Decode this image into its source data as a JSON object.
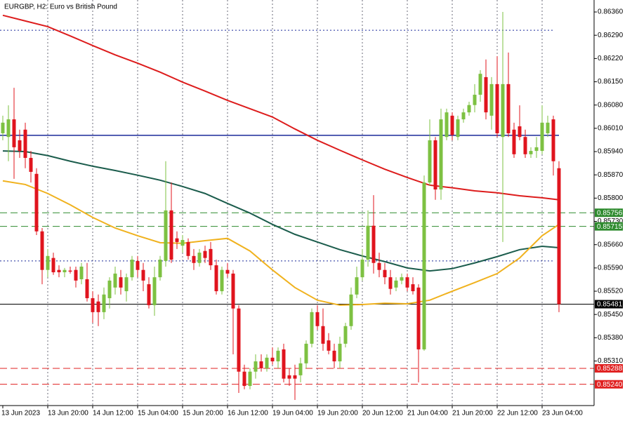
{
  "chart_data": {
    "type": "candlestick",
    "title": "EURGBP, H2:  Euro vs British Pound",
    "categories": [
      "13 Jun 2023",
      null,
      null,
      null,
      null,
      null,
      null,
      null,
      "13 Jun 20:00",
      null,
      null,
      null,
      null,
      null,
      null,
      null,
      "14 Jun 12:00",
      null,
      null,
      null,
      null,
      null,
      null,
      null,
      "15 Jun 04:00",
      null,
      null,
      null,
      null,
      null,
      null,
      null,
      "15 Jun 20:00",
      null,
      null,
      null,
      null,
      null,
      null,
      null,
      "16 Jun 12:00",
      null,
      null,
      null,
      null,
      null,
      null,
      null,
      "19 Jun 04:00",
      null,
      null,
      null,
      null,
      null,
      null,
      null,
      "19 Jun 20:00",
      null,
      null,
      null,
      null,
      null,
      null,
      null,
      "20 Jun 12:00",
      null,
      null,
      null,
      null,
      null,
      null,
      null,
      "21 Jun 04:00",
      null,
      null,
      null,
      null,
      null,
      null,
      null,
      "21 Jun 20:00",
      null,
      null,
      null,
      null,
      null,
      null,
      null,
      "22 Jun 12:00",
      null,
      null,
      null,
      null,
      null,
      null,
      null,
      "23 Jun 04:00",
      null,
      null,
      null
    ],
    "ohlc": [
      [
        0.85995,
        0.86048,
        0.85974,
        0.86027
      ],
      [
        0.85984,
        0.86079,
        0.85911,
        0.86037
      ],
      [
        0.86037,
        0.86132,
        0.85858,
        0.85953
      ],
      [
        0.85974,
        0.86006,
        0.85921,
        0.85942
      ],
      [
        0.86006,
        0.86027,
        0.8589,
        0.85921
      ],
      [
        0.85921,
        0.85942,
        0.85847,
        0.85879
      ],
      [
        0.85873,
        0.8589,
        0.85689,
        0.857
      ],
      [
        0.857,
        0.8571,
        0.85541,
        0.85584
      ],
      [
        0.85584,
        0.85647,
        0.85562,
        0.85626
      ],
      [
        0.8562,
        0.85636,
        0.85569,
        0.85577
      ],
      [
        0.85584,
        0.85598,
        0.85562,
        0.85577
      ],
      [
        0.85577,
        0.8559,
        0.85562,
        0.85584
      ],
      [
        0.85582,
        0.85594,
        0.85573,
        0.85579
      ],
      [
        0.85584,
        0.85594,
        0.85531,
        0.85552
      ],
      [
        0.85556,
        0.85605,
        0.85541,
        0.85594
      ],
      [
        0.85556,
        0.85605,
        0.85489,
        0.85499
      ],
      [
        0.85499,
        0.8552,
        0.85425,
        0.85457
      ],
      [
        0.85489,
        0.8551,
        0.85415,
        0.85457
      ],
      [
        0.85457,
        0.85531,
        0.85436,
        0.8551
      ],
      [
        0.85499,
        0.85562,
        0.85468,
        0.85552
      ],
      [
        0.85531,
        0.85594,
        0.8551,
        0.85573
      ],
      [
        0.85562,
        0.85584,
        0.8551,
        0.85531
      ],
      [
        0.8552,
        0.85573,
        0.85489,
        0.85562
      ],
      [
        0.85562,
        0.85626,
        0.85552,
        0.85615
      ],
      [
        0.85611,
        0.85626,
        0.85562,
        0.85584
      ],
      [
        0.85584,
        0.85605,
        0.8552,
        0.85552
      ],
      [
        0.85541,
        0.85562,
        0.85468,
        0.85478
      ],
      [
        0.85478,
        0.85594,
        0.85446,
        0.85562
      ],
      [
        0.85562,
        0.85626,
        0.85552,
        0.85615
      ],
      [
        0.85611,
        0.85911,
        0.85594,
        0.85763
      ],
      [
        0.85763,
        0.85847,
        0.85605,
        0.85615
      ],
      [
        0.85679,
        0.857,
        0.85647,
        0.85668
      ],
      [
        0.85657,
        0.85689,
        0.85636,
        0.85674
      ],
      [
        0.85668,
        0.85679,
        0.85615,
        0.85626
      ],
      [
        0.85626,
        0.85647,
        0.85584,
        0.85605
      ],
      [
        0.85605,
        0.85647,
        0.85594,
        0.85636
      ],
      [
        0.85641,
        0.85657,
        0.85605,
        0.8562
      ],
      [
        0.85647,
        0.85668,
        0.85584,
        0.85598
      ],
      [
        0.85598,
        0.85615,
        0.8551,
        0.8552
      ],
      [
        0.8552,
        0.85594,
        0.8551,
        0.85584
      ],
      [
        0.85584,
        0.85605,
        0.85562,
        0.85573
      ],
      [
        0.85573,
        0.85584,
        0.8533,
        0.85468
      ],
      [
        0.85468,
        0.85478,
        0.85214,
        0.85278
      ],
      [
        0.85278,
        0.85299,
        0.85225,
        0.85235
      ],
      [
        0.85235,
        0.85288,
        0.85225,
        0.85278
      ],
      [
        0.85278,
        0.8533,
        0.85257,
        0.85309
      ],
      [
        0.85309,
        0.8533,
        0.85278,
        0.85288
      ],
      [
        0.85288,
        0.8533,
        0.85278,
        0.8532
      ],
      [
        0.8532,
        0.85351,
        0.85299,
        0.85309
      ],
      [
        0.85309,
        0.85351,
        0.85288,
        0.85341
      ],
      [
        0.85345,
        0.85362,
        0.85246,
        0.85257
      ],
      [
        0.85267,
        0.85288,
        0.85235,
        0.85257
      ],
      [
        0.85267,
        0.85299,
        0.85193,
        0.85257
      ],
      [
        0.85267,
        0.8532,
        0.85246,
        0.85303
      ],
      [
        0.85303,
        0.85372,
        0.85288,
        0.85362
      ],
      [
        0.85362,
        0.85468,
        0.85351,
        0.85457
      ],
      [
        0.85457,
        0.85478,
        0.85404,
        0.85415
      ],
      [
        0.85415,
        0.85468,
        0.85341,
        0.85362
      ],
      [
        0.85372,
        0.85394,
        0.8533,
        0.85341
      ],
      [
        0.85341,
        0.85362,
        0.85288,
        0.85309
      ],
      [
        0.85309,
        0.85383,
        0.85288,
        0.85362
      ],
      [
        0.85362,
        0.85425,
        0.85351,
        0.85415
      ],
      [
        0.85415,
        0.85531,
        0.85404,
        0.8551
      ],
      [
        0.8551,
        0.85594,
        0.85499,
        0.85562
      ],
      [
        0.85562,
        0.85647,
        0.85552,
        0.85615
      ],
      [
        0.85615,
        0.85763,
        0.85594,
        0.85717
      ],
      [
        0.85717,
        0.85809,
        0.85573,
        0.85605
      ],
      [
        0.85605,
        0.85636,
        0.85562,
        0.85584
      ],
      [
        0.85584,
        0.85605,
        0.85541,
        0.85562
      ],
      [
        0.85562,
        0.85584,
        0.8551,
        0.85527
      ],
      [
        0.85531,
        0.85562,
        0.8552,
        0.85552
      ],
      [
        0.85552,
        0.85573,
        0.85541,
        0.85562
      ],
      [
        0.85562,
        0.85573,
        0.8552,
        0.85531
      ],
      [
        0.85541,
        0.85562,
        0.8551,
        0.8552
      ],
      [
        0.85531,
        0.85541,
        0.85246,
        0.85345
      ],
      [
        0.85345,
        0.85868,
        0.85341,
        0.85847
      ],
      [
        0.85847,
        0.86037,
        0.85837,
        0.85974
      ],
      [
        0.85974,
        0.85984,
        0.85795,
        0.85826
      ],
      [
        0.85826,
        0.86069,
        0.85795,
        0.86037
      ],
      [
        0.85984,
        0.86069,
        0.85974,
        0.86058
      ],
      [
        0.86048,
        0.86058,
        0.85974,
        0.8599
      ],
      [
        0.85984,
        0.86048,
        0.85974,
        0.86037
      ],
      [
        0.86037,
        0.86069,
        0.86027,
        0.86058
      ],
      [
        0.86058,
        0.8609,
        0.86048,
        0.8608
      ],
      [
        0.8608,
        0.86143,
        0.86058,
        0.86111
      ],
      [
        0.86111,
        0.86185,
        0.8609,
        0.86174
      ],
      [
        0.86164,
        0.86217,
        0.86037,
        0.86058
      ],
      [
        0.86048,
        0.86164,
        0.86006,
        0.86143
      ],
      [
        0.86143,
        0.86227,
        0.85984,
        0.85995
      ],
      [
        0.85984,
        0.8636,
        0.85668,
        0.86143
      ],
      [
        0.86143,
        0.86238,
        0.85984,
        0.85995
      ],
      [
        0.86006,
        0.86027,
        0.85921,
        0.85932
      ],
      [
        0.86016,
        0.86079,
        0.85974,
        0.85984
      ],
      [
        0.85984,
        0.86006,
        0.85921,
        0.85932
      ],
      [
        0.85932,
        0.85953,
        0.85921,
        0.85942
      ],
      [
        0.85942,
        0.85984,
        0.85921,
        0.85953
      ],
      [
        0.85942,
        0.86079,
        0.85932,
        0.86027
      ],
      [
        0.85995,
        0.86048,
        0.85984,
        0.86027
      ],
      [
        0.86037,
        0.86048,
        0.85868,
        0.85911
      ],
      [
        0.8589,
        0.85911,
        0.85457,
        0.85481
      ]
    ],
    "bull_color": "#7dc142",
    "bear_color": "#e0141e",
    "ylim": [
      0.85176,
      0.86396
    ],
    "yticks": [
      {
        "value": 0.8636,
        "label": "0.86360"
      },
      {
        "value": 0.8629,
        "label": "0.86290"
      },
      {
        "value": 0.8622,
        "label": "0.86220"
      },
      {
        "value": 0.8615,
        "label": "0.86150"
      },
      {
        "value": 0.8608,
        "label": "0.86080"
      },
      {
        "value": 0.8601,
        "label": "0.86010"
      },
      {
        "value": 0.8594,
        "label": "0.85940"
      },
      {
        "value": 0.8587,
        "label": "0.85870"
      },
      {
        "value": 0.858,
        "label": "0.85800"
      },
      {
        "value": 0.8573,
        "label": "0.85730"
      },
      {
        "value": 0.8566,
        "label": "0.85660"
      },
      {
        "value": 0.8559,
        "label": "0.85590"
      },
      {
        "value": 0.8552,
        "label": "0.85520"
      },
      {
        "value": 0.8545,
        "label": "0.85450"
      },
      {
        "value": 0.8538,
        "label": "0.85380"
      },
      {
        "value": 0.8531,
        "label": "0.85310"
      }
    ],
    "grid": true,
    "moving_averages": {
      "x": [
        0,
        4,
        8,
        12,
        16,
        20,
        24,
        28,
        32,
        36,
        40,
        44,
        48,
        52,
        56,
        60,
        64,
        68,
        72,
        76,
        80,
        84,
        88,
        92,
        96,
        99
      ],
      "series": [
        {
          "color": "#dd1c1c",
          "values": [
            0.8635,
            0.86333,
            0.86316,
            0.86288,
            0.86259,
            0.86231,
            0.86206,
            0.86179,
            0.86149,
            0.86122,
            0.86094,
            0.86069,
            0.86044,
            0.86008,
            0.85974,
            0.85944,
            0.85915,
            0.85887,
            0.85862,
            0.85839,
            0.85831,
            0.85822,
            0.85816,
            0.85807,
            0.85801,
            0.85795
          ]
        },
        {
          "color": "#1b5c4c",
          "values": [
            0.85942,
            0.8594,
            0.85928,
            0.85911,
            0.85896,
            0.85883,
            0.85869,
            0.85854,
            0.85835,
            0.85814,
            0.85784,
            0.85755,
            0.85721,
            0.85691,
            0.85668,
            0.85645,
            0.85626,
            0.85609,
            0.8559,
            0.85581,
            0.85588,
            0.85605,
            0.85624,
            0.85645,
            0.85655,
            0.85651
          ]
        },
        {
          "color": "#f0b21e",
          "values": [
            0.85852,
            0.85841,
            0.85814,
            0.8578,
            0.85742,
            0.8571,
            0.85687,
            0.85666,
            0.85664,
            0.85672,
            0.85679,
            0.85641,
            0.85584,
            0.85531,
            0.85493,
            0.85478,
            0.8548,
            0.85484,
            0.85482,
            0.85493,
            0.8552,
            0.85546,
            0.85573,
            0.8562,
            0.85687,
            0.85721
          ]
        }
      ]
    },
    "levels": [
      {
        "value": 0.86305,
        "color": "#1a2a9a",
        "style": "dotted"
      },
      {
        "value": 0.85989,
        "color": "#1a2a9a",
        "style": "solid"
      },
      {
        "value": 0.85611,
        "color": "#1a2a9a",
        "style": "dotted"
      },
      {
        "value": 0.85756,
        "label": "0.85756",
        "color": "#2e8b2e",
        "style": "dashed"
      },
      {
        "value": 0.85715,
        "label": "0.85715",
        "color": "#2e8b2e",
        "style": "dashed"
      },
      {
        "value": 0.85481,
        "label": "0.85481",
        "color": "#000000",
        "style": "solid"
      },
      {
        "value": 0.85288,
        "label": "0.85288",
        "color": "#e02020",
        "style": "dashed"
      },
      {
        "value": 0.8524,
        "label": "0.85240",
        "color": "#e02020",
        "style": "dashed"
      }
    ]
  }
}
